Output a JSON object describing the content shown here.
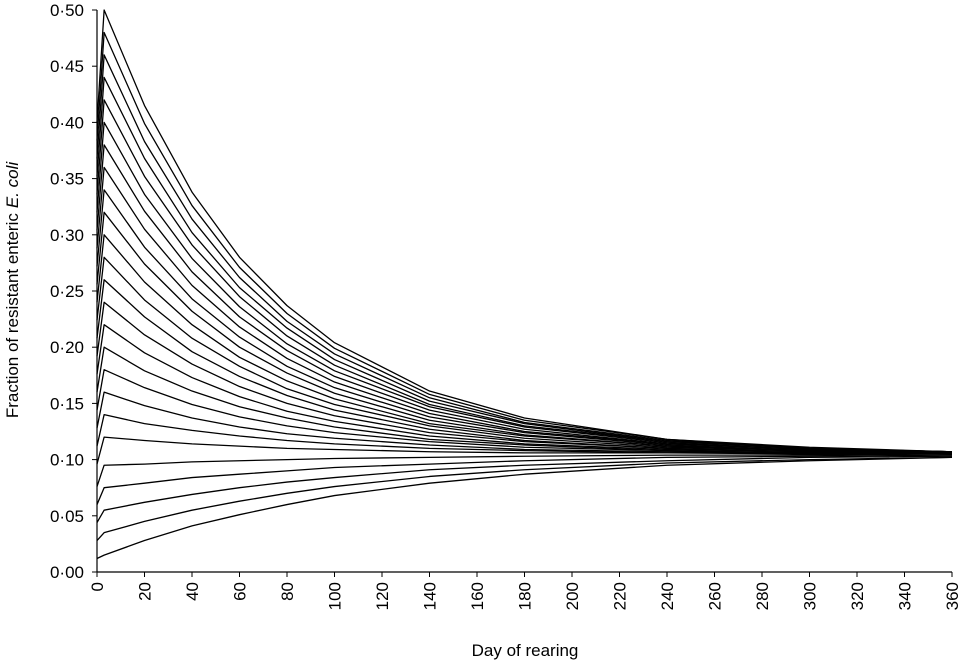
{
  "chart_data": {
    "type": "line",
    "ylabel": [
      "Fraction of resistant enteric",
      "E. coli"
    ],
    "xlabel": "Day of rearing",
    "color": "#000000",
    "grid": false,
    "x": [
      0,
      3,
      20,
      40,
      60,
      80,
      100,
      140,
      180,
      240,
      300,
      360
    ],
    "xlim": [
      0,
      360
    ],
    "xticks": [
      0,
      20,
      40,
      60,
      80,
      100,
      120,
      140,
      160,
      180,
      200,
      220,
      240,
      260,
      280,
      300,
      320,
      340,
      360
    ],
    "ylim": [
      0,
      0.5
    ],
    "yticks": [
      {
        "value": 0,
        "label": "0·00"
      },
      {
        "value": 0.05,
        "label": "0·05"
      },
      {
        "value": 0.1,
        "label": "0·10"
      },
      {
        "value": 0.15,
        "label": "0·15"
      },
      {
        "value": 0.2,
        "label": "0·20"
      },
      {
        "value": 0.25,
        "label": "0·25"
      },
      {
        "value": 0.3,
        "label": "0·30"
      },
      {
        "value": 0.35,
        "label": "0·35"
      },
      {
        "value": 0.4,
        "label": "0·40"
      },
      {
        "value": 0.45,
        "label": "0·45"
      },
      {
        "value": 0.5,
        "label": "0·50"
      }
    ],
    "series": [
      {
        "values": [
          0.012,
          0.015,
          0.028,
          0.041,
          0.051,
          0.06,
          0.068,
          0.079,
          0.087,
          0.095,
          0.099,
          0.102
        ]
      },
      {
        "values": [
          0.028,
          0.035,
          0.045,
          0.055,
          0.063,
          0.07,
          0.076,
          0.085,
          0.091,
          0.097,
          0.1,
          0.102
        ]
      },
      {
        "values": [
          0.044,
          0.055,
          0.062,
          0.069,
          0.075,
          0.08,
          0.084,
          0.091,
          0.095,
          0.099,
          0.102,
          0.103
        ]
      },
      {
        "values": [
          0.06,
          0.075,
          0.079,
          0.084,
          0.087,
          0.09,
          0.093,
          0.096,
          0.099,
          0.102,
          0.103,
          0.104
        ]
      },
      {
        "values": [
          0.076,
          0.095,
          0.096,
          0.098,
          0.099,
          0.1,
          0.101,
          0.102,
          0.103,
          0.104,
          0.104,
          0.105
        ]
      },
      {
        "values": [
          0.096,
          0.12,
          0.117,
          0.114,
          0.112,
          0.11,
          0.109,
          0.107,
          0.106,
          0.106,
          0.105,
          0.105
        ]
      },
      {
        "values": [
          0.112,
          0.14,
          0.132,
          0.126,
          0.121,
          0.117,
          0.114,
          0.11,
          0.108,
          0.106,
          0.106,
          0.105
        ]
      },
      {
        "values": [
          0.128,
          0.16,
          0.148,
          0.137,
          0.129,
          0.123,
          0.119,
          0.113,
          0.109,
          0.107,
          0.106,
          0.105
        ]
      },
      {
        "values": [
          0.144,
          0.18,
          0.164,
          0.149,
          0.138,
          0.13,
          0.124,
          0.116,
          0.111,
          0.108,
          0.106,
          0.105
        ]
      },
      {
        "values": [
          0.16,
          0.2,
          0.179,
          0.161,
          0.147,
          0.137,
          0.129,
          0.118,
          0.113,
          0.108,
          0.106,
          0.106
        ]
      },
      {
        "values": [
          0.176,
          0.22,
          0.195,
          0.173,
          0.156,
          0.143,
          0.134,
          0.121,
          0.114,
          0.109,
          0.107,
          0.106
        ]
      },
      {
        "values": [
          0.192,
          0.24,
          0.211,
          0.185,
          0.165,
          0.15,
          0.139,
          0.124,
          0.116,
          0.11,
          0.107,
          0.106
        ]
      },
      {
        "values": [
          0.208,
          0.26,
          0.227,
          0.196,
          0.174,
          0.157,
          0.144,
          0.127,
          0.117,
          0.11,
          0.107,
          0.106
        ]
      },
      {
        "values": [
          0.224,
          0.28,
          0.242,
          0.208,
          0.183,
          0.163,
          0.149,
          0.13,
          0.119,
          0.111,
          0.108,
          0.106
        ]
      },
      {
        "values": [
          0.24,
          0.3,
          0.258,
          0.22,
          0.191,
          0.17,
          0.154,
          0.132,
          0.121,
          0.112,
          0.108,
          0.106
        ]
      },
      {
        "values": [
          0.256,
          0.32,
          0.274,
          0.232,
          0.2,
          0.177,
          0.159,
          0.135,
          0.122,
          0.112,
          0.108,
          0.106
        ]
      },
      {
        "values": [
          0.272,
          0.34,
          0.289,
          0.243,
          0.209,
          0.183,
          0.164,
          0.138,
          0.124,
          0.113,
          0.108,
          0.106
        ]
      },
      {
        "values": [
          0.288,
          0.36,
          0.305,
          0.255,
          0.218,
          0.19,
          0.169,
          0.141,
          0.125,
          0.114,
          0.109,
          0.107
        ]
      },
      {
        "values": [
          0.304,
          0.38,
          0.321,
          0.267,
          0.227,
          0.197,
          0.174,
          0.144,
          0.127,
          0.114,
          0.109,
          0.107
        ]
      },
      {
        "values": [
          0.32,
          0.4,
          0.336,
          0.279,
          0.236,
          0.203,
          0.179,
          0.147,
          0.129,
          0.115,
          0.109,
          0.107
        ]
      },
      {
        "values": [
          0.336,
          0.42,
          0.352,
          0.291,
          0.245,
          0.21,
          0.184,
          0.149,
          0.13,
          0.116,
          0.11,
          0.107
        ]
      },
      {
        "values": [
          0.352,
          0.44,
          0.368,
          0.302,
          0.253,
          0.217,
          0.189,
          0.152,
          0.132,
          0.116,
          0.11,
          0.107
        ]
      },
      {
        "values": [
          0.368,
          0.46,
          0.383,
          0.314,
          0.262,
          0.223,
          0.194,
          0.155,
          0.133,
          0.117,
          0.11,
          0.107
        ]
      },
      {
        "values": [
          0.384,
          0.48,
          0.399,
          0.326,
          0.271,
          0.23,
          0.199,
          0.158,
          0.135,
          0.118,
          0.11,
          0.107
        ]
      },
      {
        "values": [
          0.4,
          0.5,
          0.415,
          0.338,
          0.28,
          0.237,
          0.204,
          0.161,
          0.137,
          0.118,
          0.111,
          0.107
        ]
      }
    ]
  }
}
